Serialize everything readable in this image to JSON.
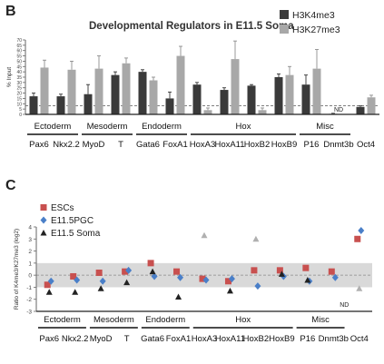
{
  "panels": {
    "b": "B",
    "c": "C"
  },
  "chart_data": [
    {
      "type": "bar",
      "title": "Developmental Regulators in E11.5 Soma",
      "ylabel": "% Input",
      "ylim": [
        0,
        70
      ],
      "yticks": [
        0,
        5,
        10,
        15,
        20,
        25,
        30,
        35,
        40,
        45,
        50,
        55,
        60,
        65,
        70
      ],
      "threshold": 8,
      "legend_position": "top-right",
      "colors": {
        "H3K4me3": "#3a3a3a",
        "H3K27me3": "#a8a8a8"
      },
      "categories": [
        "Pax6",
        "Nkx2.2",
        "MyoD",
        "T",
        "Gata6",
        "FoxA1",
        "HoxA3",
        "HoxA11",
        "HoxB2",
        "HoxB9",
        "P16",
        "Dnmt3b",
        "Oct4"
      ],
      "series": [
        {
          "name": "H3K4me3",
          "values": [
            17,
            17,
            19,
            37,
            40,
            15,
            28,
            23,
            27,
            35,
            28,
            0.5,
            7
          ],
          "errors": [
            3,
            2,
            9,
            3,
            2,
            6,
            2,
            2,
            1,
            3,
            9,
            0.5,
            1
          ]
        },
        {
          "name": "H3K27me3",
          "values": [
            44,
            42,
            43,
            48,
            32,
            55,
            4,
            52,
            4,
            37,
            43,
            0,
            16
          ],
          "errors": [
            7,
            8,
            12,
            5,
            3,
            9,
            2,
            17,
            2,
            8,
            18,
            0,
            2
          ]
        }
      ],
      "annotations": [
        {
          "category": "Dnmt3b",
          "text": "ND"
        }
      ],
      "groups": [
        {
          "label": "Ectoderm",
          "from": 0,
          "to": 1
        },
        {
          "label": "Mesoderm",
          "from": 2,
          "to": 3
        },
        {
          "label": "Endoderm",
          "from": 4,
          "to": 5
        },
        {
          "label": "Hox",
          "from": 6,
          "to": 9
        },
        {
          "label": "Misc",
          "from": 10,
          "to": 11
        }
      ]
    },
    {
      "type": "scatter",
      "ylabel": "Ratio of K4me3/K27me3 (log2)",
      "ylim": [
        -3,
        4
      ],
      "yticks": [
        -3,
        -2,
        -1,
        0,
        1,
        2,
        3,
        4
      ],
      "band": [
        -1,
        1
      ],
      "legend_position": "top-left",
      "categories": [
        "Pax6",
        "Nkx2.2",
        "MyoD",
        "T",
        "Gata6",
        "FoxA1",
        "HoxA3",
        "HoxA11",
        "HoxB2",
        "HoxB9",
        "P16",
        "Dnmt3b",
        "Oct4"
      ],
      "series": [
        {
          "name": "ESCs",
          "marker": "square",
          "color": "#c8504f",
          "values": [
            -0.8,
            -0.1,
            0.2,
            0.3,
            1.0,
            0.3,
            -0.3,
            -0.5,
            0.4,
            0.4,
            0.6,
            0.3,
            3.0
          ]
        },
        {
          "name": "E11.5PGC",
          "marker": "diamond",
          "color": "#4a7fc8",
          "values": [
            -0.5,
            -0.4,
            -0.5,
            0.4,
            -0.1,
            -0.2,
            -0.4,
            -0.3,
            -0.9,
            -0.1,
            -0.5,
            -0.2,
            3.7
          ]
        },
        {
          "name": "E11.5 Soma",
          "marker": "triangle",
          "color": "#222222",
          "values": [
            -1.4,
            -1.4,
            -1.1,
            -0.6,
            0.3,
            -1.8,
            3.3,
            -1.3,
            3.0,
            0.1,
            -0.4,
            null,
            -1.1
          ]
        }
      ],
      "faded": [
        {
          "series": "E11.5 Soma",
          "category": "HoxA3"
        },
        {
          "series": "E11.5 Soma",
          "category": "HoxB2"
        },
        {
          "series": "E11.5 Soma",
          "category": "Oct4"
        }
      ],
      "annotations": [
        {
          "category": "Dnmt3b",
          "text": "ND"
        }
      ],
      "groups": [
        {
          "label": "Ectoderm",
          "from": 0,
          "to": 1
        },
        {
          "label": "Mesoderm",
          "from": 2,
          "to": 3
        },
        {
          "label": "Endoderm",
          "from": 4,
          "to": 5
        },
        {
          "label": "Hox",
          "from": 6,
          "to": 9
        },
        {
          "label": "Misc",
          "from": 10,
          "to": 11
        }
      ]
    }
  ]
}
